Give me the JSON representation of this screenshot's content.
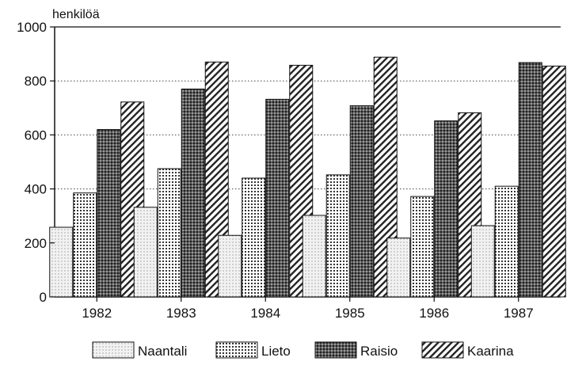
{
  "chart_data": {
    "type": "bar",
    "title": "",
    "ylabel": "henkilöä",
    "xlabel": "",
    "ylim": [
      0,
      1000
    ],
    "yticks": [
      0,
      200,
      400,
      600,
      800,
      1000
    ],
    "grid": "horizontal dotted",
    "legend_position": "bottom",
    "categories": [
      "1982",
      "1983",
      "1984",
      "1985",
      "1986",
      "1987"
    ],
    "series": [
      {
        "name": "Naantali",
        "values": [
          258,
          332,
          228,
          302,
          218,
          264
        ],
        "pattern": "fine-dots",
        "color": "#ececec"
      },
      {
        "name": "Lieto",
        "values": [
          385,
          475,
          440,
          452,
          372,
          410
        ],
        "pattern": "grid-dots",
        "color": "#d9d9d9"
      },
      {
        "name": "Raisio",
        "values": [
          620,
          770,
          732,
          708,
          652,
          868
        ],
        "pattern": "dense-crosshatch",
        "color": "#7a7a7a"
      },
      {
        "name": "Kaarina",
        "values": [
          722,
          870,
          858,
          888,
          682,
          855
        ],
        "pattern": "diagonal-lines",
        "color": "#555555"
      }
    ]
  }
}
